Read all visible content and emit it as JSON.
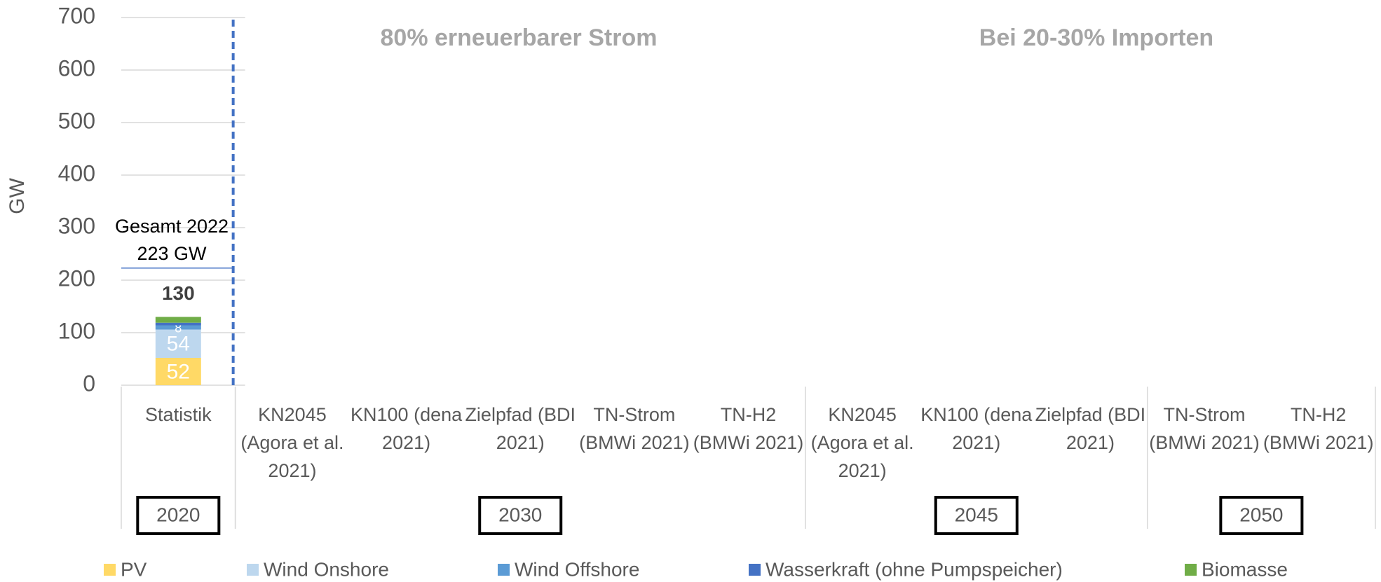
{
  "chart_data": {
    "type": "bar",
    "stacked": true,
    "y_label": "GW",
    "panel_titles": [
      "80% erneuerbarer Strom",
      "Bei 20-30% Importen"
    ],
    "groups": [
      {
        "label": "2020",
        "categories": [
          "Statistik"
        ]
      },
      {
        "label": "2030",
        "categories": [
          "KN2045 (Agora et al. 2021)",
          "KN100 (dena 2021)",
          "Zielpfad (BDI 2021)",
          "TN-Strom (BMWi 2021)",
          "TN-H2 (BMWi 2021)"
        ]
      },
      {
        "label": "2045",
        "categories": [
          "KN2045 (Agora et al. 2021)",
          "KN100 (dena 2021)",
          "Zielpfad (BDI 2021)"
        ]
      },
      {
        "label": "2050",
        "categories": [
          "TN-Strom (BMWi 2021)",
          "TN-H2 (BMWi 2021)"
        ]
      }
    ],
    "series": [
      {
        "name": "PV",
        "color": "#ffd966",
        "labels": true,
        "values": [
          52,
          null,
          null,
          null,
          null,
          null,
          null,
          null,
          null,
          null,
          null
        ]
      },
      {
        "name": "Wind Onshore",
        "color": "#bdd7ee",
        "labels": true,
        "values": [
          54,
          null,
          null,
          null,
          null,
          null,
          null,
          null,
          null,
          null,
          null
        ]
      },
      {
        "name": "Wind Offshore",
        "color": "#5b9bd5",
        "labels": true,
        "values": [
          8,
          null,
          null,
          null,
          null,
          null,
          null,
          null,
          null,
          null,
          null
        ]
      },
      {
        "name": "Wasserkraft (ohne Pumpspeicher)",
        "color": "#4472c4",
        "labels": false,
        "values": [
          5,
          null,
          null,
          null,
          null,
          null,
          null,
          null,
          null,
          null,
          null
        ]
      },
      {
        "name": "Biomasse",
        "color": "#70ad47",
        "labels": false,
        "values": [
          11,
          null,
          null,
          null,
          null,
          null,
          null,
          null,
          null,
          null,
          null
        ]
      }
    ],
    "totals": [
      130,
      null,
      null,
      null,
      null,
      null,
      null,
      null,
      null,
      null,
      null
    ],
    "annotation": {
      "lines": [
        "Gesamt 2022",
        "223 GW"
      ],
      "value": 223
    },
    "ylim": [
      0,
      700
    ],
    "yticks": [
      0,
      100,
      200,
      300,
      400,
      500,
      600,
      700
    ],
    "grid": true
  }
}
